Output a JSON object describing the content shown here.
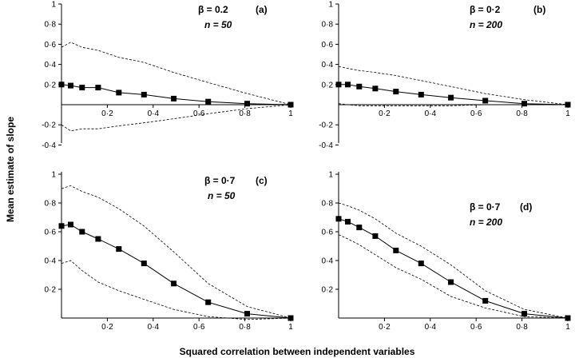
{
  "xlabel": "Squared correlation between independent variables",
  "ylabel": "Mean estimate of slope",
  "chart_data": [
    {
      "type": "line",
      "panel_label": "(a)",
      "beta_label": "β = 0.2",
      "n_label": "n = 50",
      "x_ticks": [
        "0·2",
        "0·4",
        "0·6",
        "0·8",
        "1"
      ],
      "y_ticks": [
        "1",
        "0·8",
        "0·6",
        "0·4",
        "0·2",
        "-0·2",
        "-0·4"
      ],
      "xlim": [
        0,
        1
      ],
      "ylim": [
        -0.5,
        1
      ],
      "x": [
        0,
        0.04,
        0.09,
        0.16,
        0.25,
        0.36,
        0.49,
        0.64,
        0.81,
        1
      ],
      "mean": [
        0.2,
        0.19,
        0.17,
        0.17,
        0.12,
        0.1,
        0.06,
        0.03,
        0.01,
        0
      ],
      "upper": [
        0.57,
        0.62,
        0.57,
        0.54,
        0.47,
        0.42,
        0.32,
        0.22,
        0.11,
        0
      ],
      "lower": [
        -0.2,
        -0.26,
        -0.24,
        -0.24,
        -0.21,
        -0.18,
        -0.14,
        -0.09,
        -0.04,
        0
      ]
    },
    {
      "type": "line",
      "panel_label": "(b)",
      "beta_label": "β = 0·2",
      "n_label": "n = 200",
      "x_ticks": [
        "0·2",
        "0·4",
        "0·6",
        "0·8",
        "1"
      ],
      "y_ticks": [
        "1",
        "0·8",
        "0·6",
        "0·4",
        "0·2",
        "-0·2",
        "-0·4"
      ],
      "xlim": [
        0,
        1
      ],
      "ylim": [
        -0.5,
        1
      ],
      "x": [
        0,
        0.04,
        0.09,
        0.16,
        0.25,
        0.36,
        0.49,
        0.64,
        0.81,
        1
      ],
      "mean": [
        0.2,
        0.2,
        0.18,
        0.16,
        0.13,
        0.1,
        0.07,
        0.04,
        0.01,
        0
      ],
      "upper": [
        0.38,
        0.36,
        0.34,
        0.32,
        0.29,
        0.24,
        0.18,
        0.11,
        0.05,
        0
      ],
      "lower": [
        0.01,
        0.0,
        -0.01,
        -0.01,
        -0.01,
        -0.01,
        -0.01,
        0.0,
        0.0,
        0
      ]
    },
    {
      "type": "line",
      "panel_label": "(c)",
      "beta_label": "β = 0·7",
      "n_label": "n = 50",
      "x_ticks": [
        "0·2",
        "0·4",
        "0·6",
        "0·8",
        "1"
      ],
      "y_ticks": [
        "1",
        "0·8",
        "0·6",
        "0·4",
        "0·2"
      ],
      "xlim": [
        0,
        1
      ],
      "ylim": [
        0,
        1
      ],
      "x": [
        0,
        0.04,
        0.09,
        0.16,
        0.25,
        0.36,
        0.49,
        0.64,
        0.81,
        1
      ],
      "mean": [
        0.64,
        0.65,
        0.6,
        0.55,
        0.48,
        0.38,
        0.24,
        0.11,
        0.03,
        0
      ],
      "upper": [
        0.9,
        0.92,
        0.88,
        0.84,
        0.76,
        0.64,
        0.46,
        0.24,
        0.08,
        0
      ],
      "lower": [
        0.38,
        0.4,
        0.33,
        0.25,
        0.19,
        0.13,
        0.06,
        0.01,
        -0.01,
        0
      ]
    },
    {
      "type": "line",
      "panel_label": "(d)",
      "beta_label": "β = 0·7",
      "n_label": "n = 200",
      "x_ticks": [
        "0·2",
        "0·4",
        "0·6",
        "0·8",
        "1"
      ],
      "y_ticks": [
        "1",
        "0·8",
        "0·6",
        "0·4",
        "0·2"
      ],
      "xlim": [
        0,
        1
      ],
      "ylim": [
        0,
        1
      ],
      "x": [
        0,
        0.04,
        0.09,
        0.16,
        0.25,
        0.36,
        0.49,
        0.64,
        0.81,
        1
      ],
      "mean": [
        0.69,
        0.67,
        0.63,
        0.57,
        0.47,
        0.38,
        0.25,
        0.12,
        0.03,
        0
      ],
      "upper": [
        0.8,
        0.78,
        0.75,
        0.69,
        0.59,
        0.5,
        0.37,
        0.19,
        0.06,
        0
      ],
      "lower": [
        0.58,
        0.55,
        0.51,
        0.44,
        0.35,
        0.27,
        0.15,
        0.07,
        0.01,
        0
      ]
    }
  ]
}
